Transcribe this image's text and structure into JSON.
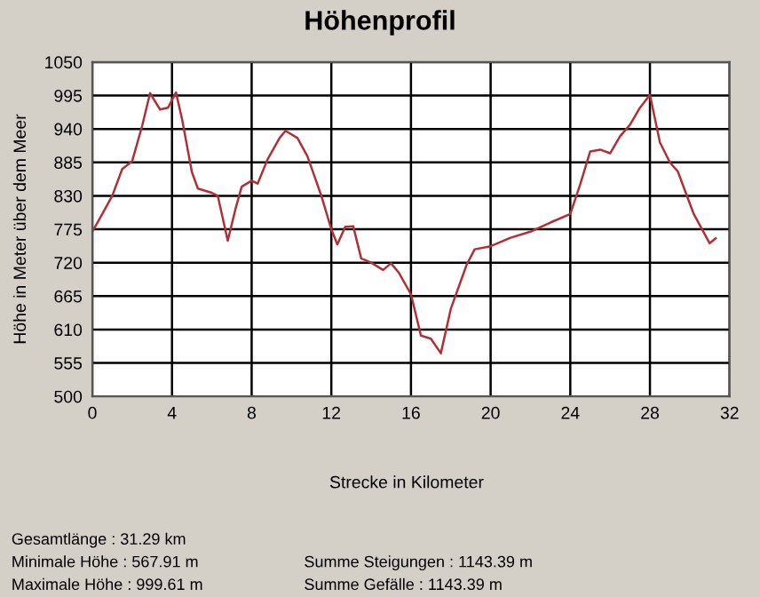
{
  "chart_data": {
    "type": "line",
    "title": "Höhenprofil",
    "xlabel": "Strecke in Kilometer",
    "ylabel": "Höhe in Meter über dem Meer",
    "xlim": [
      0,
      32
    ],
    "xticks": [
      0,
      4,
      8,
      12,
      16,
      20,
      24,
      28,
      32
    ],
    "ylim": [
      500,
      1050
    ],
    "yticks": [
      500,
      555,
      610,
      665,
      720,
      775,
      830,
      885,
      940,
      995,
      1050
    ],
    "grid": true,
    "legend": false,
    "series": [
      {
        "color": "#b03038",
        "x": [
          0,
          0.5,
          1,
          1.5,
          2,
          2.5,
          2.9,
          3.4,
          3.8,
          4.2,
          4.5,
          5,
          5.3,
          6,
          6.3,
          6.8,
          7.2,
          7.5,
          8,
          8.3,
          8.8,
          9.4,
          9.7,
          10.3,
          10.8,
          11.5,
          12,
          12.3,
          12.7,
          13.1,
          13.5,
          14,
          14.6,
          15,
          15.4,
          16,
          16.5,
          17,
          17.5,
          18,
          18.8,
          19.2,
          20,
          21,
          22,
          23,
          24,
          24.5,
          25,
          25.5,
          26,
          26.5,
          27,
          27.5,
          28,
          28.5,
          29,
          29.4,
          30.2,
          31,
          31.3
        ],
        "values": [
          771,
          800,
          830,
          874,
          887,
          945,
          999,
          972,
          975,
          1000,
          957,
          869,
          842,
          835,
          830,
          756,
          810,
          845,
          855,
          850,
          890,
          925,
          937,
          925,
          895,
          830,
          775,
          750,
          779,
          780,
          727,
          720,
          708,
          719,
          703,
          668,
          600,
          595,
          571,
          644,
          717,
          742,
          747,
          761,
          771,
          786,
          800,
          849,
          903,
          906,
          900,
          928,
          947,
          975,
          996,
          918,
          885,
          870,
          800,
          752,
          760
        ]
      }
    ],
    "annotations": [
      "Gesamtlänge : 31.29 km",
      "Minimale Höhe : 567.91 m",
      "Maximale Höhe : 999.61 m",
      "Summe Steigungen : 1143.39 m",
      "Summe Gefälle : 1143.39 m"
    ]
  }
}
